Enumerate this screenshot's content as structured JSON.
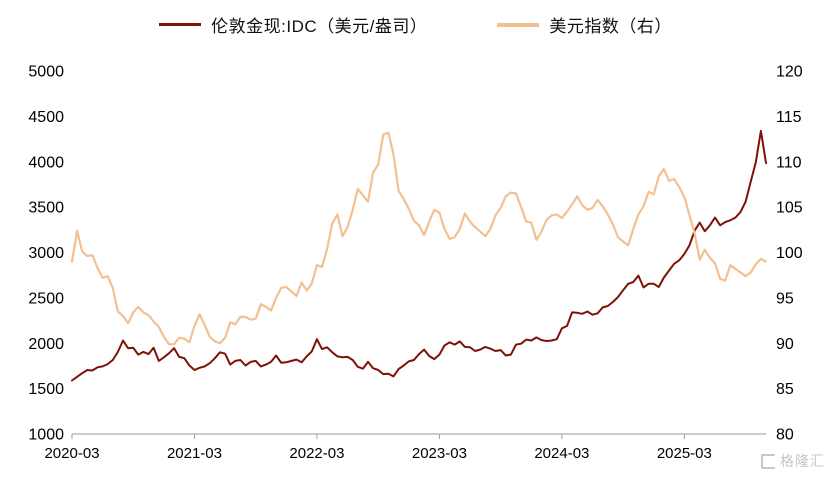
{
  "legend": {
    "items": [
      {
        "label": "伦敦金现:IDC（美元/盎司）",
        "color": "#7f1108"
      },
      {
        "label": "美元指数（右）",
        "color": "#f2c091"
      }
    ]
  },
  "watermark": {
    "text": "格隆汇"
  },
  "chart_data": {
    "type": "line",
    "title": "",
    "xlabel": "",
    "ylabel_left": "",
    "ylabel_right": "",
    "grid": false,
    "legend_position": "top-center",
    "x_tick_labels": [
      "2020-03",
      "2021-03",
      "2022-03",
      "2023-03",
      "2024-03",
      "2025-03"
    ],
    "x_tick_indices": [
      0,
      24,
      48,
      72,
      96,
      120
    ],
    "left_axis": {
      "min": 1000,
      "max": 5000,
      "ticks": [
        1000,
        1500,
        2000,
        2500,
        3000,
        3500,
        4000,
        4500,
        5000
      ]
    },
    "right_axis": {
      "min": 80,
      "max": 120,
      "ticks": [
        80,
        85,
        90,
        95,
        100,
        105,
        110,
        115,
        120
      ]
    },
    "series": [
      {
        "name": "伦敦金现:IDC（美元/盎司）",
        "axis": "left",
        "color": "#7f1108",
        "width": 2,
        "values": [
          1590,
          1630,
          1670,
          1705,
          1700,
          1735,
          1745,
          1770,
          1815,
          1905,
          2030,
          1945,
          1950,
          1875,
          1905,
          1880,
          1950,
          1805,
          1845,
          1890,
          1945,
          1850,
          1835,
          1755,
          1705,
          1730,
          1745,
          1780,
          1835,
          1900,
          1885,
          1765,
          1805,
          1815,
          1755,
          1795,
          1805,
          1745,
          1765,
          1795,
          1865,
          1785,
          1790,
          1805,
          1820,
          1790,
          1855,
          1910,
          2045,
          1935,
          1955,
          1900,
          1855,
          1845,
          1850,
          1815,
          1740,
          1720,
          1795,
          1725,
          1705,
          1660,
          1665,
          1635,
          1715,
          1755,
          1800,
          1815,
          1880,
          1930,
          1860,
          1825,
          1875,
          1975,
          2010,
          1985,
          2020,
          1960,
          1955,
          1915,
          1930,
          1960,
          1940,
          1915,
          1925,
          1865,
          1875,
          1985,
          1995,
          2040,
          2030,
          2065,
          2035,
          2025,
          2030,
          2045,
          2165,
          2190,
          2340,
          2335,
          2325,
          2350,
          2315,
          2330,
          2395,
          2410,
          2455,
          2510,
          2585,
          2655,
          2675,
          2745,
          2615,
          2655,
          2655,
          2620,
          2725,
          2800,
          2875,
          2915,
          2985,
          3080,
          3240,
          3330,
          3235,
          3300,
          3385,
          3300,
          3335,
          3355,
          3385,
          3445,
          3560,
          3780,
          3995,
          4340,
          3985
        ]
      },
      {
        "name": "美元指数（右）",
        "axis": "right",
        "color": "#f2c091",
        "width": 2.2,
        "values": [
          99.0,
          102.4,
          100.1,
          99.6,
          99.7,
          98.3,
          97.2,
          97.4,
          96.1,
          93.5,
          93.0,
          92.2,
          93.4,
          94.0,
          93.4,
          93.1,
          92.4,
          91.8,
          90.7,
          89.9,
          89.9,
          90.6,
          90.5,
          90.1,
          91.9,
          93.2,
          92.0,
          90.7,
          90.2,
          90.0,
          90.6,
          92.3,
          92.1,
          92.9,
          92.9,
          92.6,
          92.7,
          94.3,
          94.0,
          93.6,
          95.0,
          96.1,
          96.2,
          95.7,
          95.2,
          96.7,
          95.8,
          96.6,
          98.6,
          98.4,
          100.4,
          103.2,
          104.2,
          101.8,
          102.8,
          104.7,
          107.0,
          106.3,
          105.6,
          108.8,
          109.7,
          113.0,
          113.2,
          110.8,
          106.8,
          105.9,
          104.8,
          103.5,
          103.0,
          101.9,
          103.4,
          104.7,
          104.4,
          102.6,
          101.5,
          101.7,
          102.6,
          104.3,
          103.4,
          102.8,
          102.3,
          101.8,
          102.6,
          104.1,
          104.9,
          106.2,
          106.6,
          106.5,
          105.0,
          103.4,
          103.3,
          101.4,
          102.3,
          103.6,
          104.1,
          104.2,
          103.8,
          104.5,
          105.3,
          106.2,
          105.2,
          104.7,
          104.9,
          105.8,
          105.1,
          104.2,
          103.1,
          101.7,
          101.2,
          100.8,
          102.6,
          104.2,
          105.1,
          106.7,
          106.4,
          108.4,
          109.2,
          107.9,
          108.1,
          107.2,
          106.1,
          104.1,
          102.1,
          99.2,
          100.3,
          99.4,
          98.8,
          97.1,
          96.9,
          98.6,
          98.2,
          97.8,
          97.4,
          97.8,
          98.7,
          99.3,
          99.0
        ]
      }
    ]
  }
}
